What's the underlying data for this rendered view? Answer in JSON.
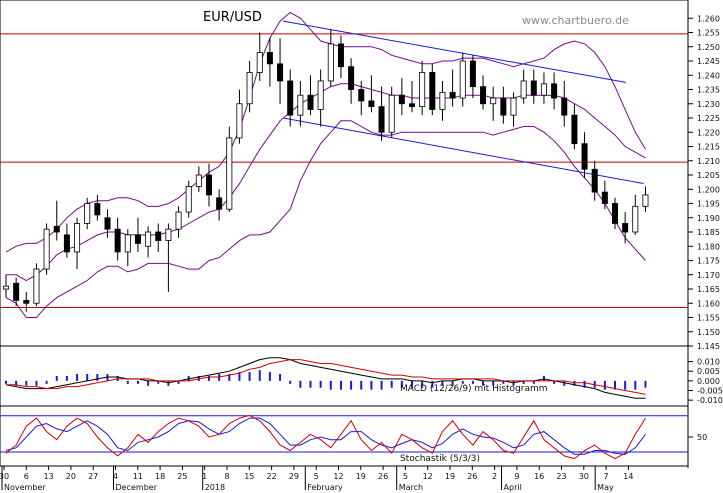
{
  "chart_data": {
    "type": "candlestick",
    "title": "EUR/USD",
    "source": "www.chartbuero.de",
    "price_axis": {
      "ylim": [
        1.145,
        1.265
      ],
      "ticks": [
        "1.260",
        "1.255",
        "1.250",
        "1.245",
        "1.240",
        "1.235",
        "1.230",
        "1.225",
        "1.220",
        "1.215",
        "1.210",
        "1.205",
        "1.200",
        "1.195",
        "1.190",
        "1.185",
        "1.180",
        "1.175",
        "1.170",
        "1.165",
        "1.160",
        "1.155",
        "1.150",
        "1.145"
      ]
    },
    "date_ticks": [
      "30",
      "6",
      "13",
      "20",
      "27",
      "4",
      "11",
      "18",
      "25",
      "1",
      "8",
      "15",
      "22",
      "29",
      "5",
      "12",
      "19",
      "26",
      "5",
      "12",
      "19",
      "26",
      "2",
      "9",
      "16",
      "23",
      "30",
      "7",
      "14"
    ],
    "month_labels": [
      "November",
      "December",
      "2018",
      "February",
      "March",
      "April",
      "May"
    ],
    "horizontal_levels": [
      1.2545,
      1.2095,
      1.1585
    ],
    "trend_channel": {
      "upper": {
        "from": [
          13,
          1.259
        ],
        "to": [
          35,
          1.2375
        ]
      },
      "lower": {
        "from": [
          13,
          1.225
        ],
        "to": [
          36,
          1.202
        ]
      }
    },
    "candles": [
      [
        1.165,
        1.17,
        1.162,
        1.166
      ],
      [
        1.167,
        1.169,
        1.159,
        1.161
      ],
      [
        1.161,
        1.164,
        1.157,
        1.16
      ],
      [
        1.16,
        1.174,
        1.159,
        1.172
      ],
      [
        1.172,
        1.188,
        1.17,
        1.186
      ],
      [
        1.187,
        1.196,
        1.182,
        1.185
      ],
      [
        1.184,
        1.188,
        1.176,
        1.178
      ],
      [
        1.178,
        1.19,
        1.172,
        1.188
      ],
      [
        1.188,
        1.197,
        1.186,
        1.195
      ],
      [
        1.195,
        1.198,
        1.189,
        1.191
      ],
      [
        1.19,
        1.193,
        1.183,
        1.186
      ],
      [
        1.186,
        1.19,
        1.175,
        1.178
      ],
      [
        1.178,
        1.186,
        1.173,
        1.184
      ],
      [
        1.184,
        1.19,
        1.178,
        1.181
      ],
      [
        1.18,
        1.187,
        1.176,
        1.185
      ],
      [
        1.185,
        1.188,
        1.178,
        1.182
      ],
      [
        1.182,
        1.188,
        1.164,
        1.186
      ],
      [
        1.186,
        1.194,
        1.183,
        1.192
      ],
      [
        1.192,
        1.203,
        1.19,
        1.201
      ],
      [
        1.201,
        1.208,
        1.199,
        1.205
      ],
      [
        1.205,
        1.209,
        1.194,
        1.198
      ],
      [
        1.197,
        1.2,
        1.189,
        1.193
      ],
      [
        1.193,
        1.222,
        1.192,
        1.218
      ],
      [
        1.218,
        1.235,
        1.216,
        1.23
      ],
      [
        1.23,
        1.245,
        1.227,
        1.241
      ],
      [
        1.241,
        1.255,
        1.238,
        1.248
      ],
      [
        1.248,
        1.253,
        1.236,
        1.244
      ],
      [
        1.244,
        1.253,
        1.23,
        1.238
      ],
      [
        1.238,
        1.242,
        1.222,
        1.226
      ],
      [
        1.226,
        1.238,
        1.222,
        1.233
      ],
      [
        1.233,
        1.24,
        1.226,
        1.228
      ],
      [
        1.228,
        1.242,
        1.222,
        1.238
      ],
      [
        1.238,
        1.256,
        1.236,
        1.251
      ],
      [
        1.251,
        1.254,
        1.239,
        1.243
      ],
      [
        1.243,
        1.246,
        1.23,
        1.235
      ],
      [
        1.235,
        1.238,
        1.226,
        1.231
      ],
      [
        1.231,
        1.24,
        1.227,
        1.229
      ],
      [
        1.229,
        1.236,
        1.217,
        1.22
      ],
      [
        1.22,
        1.236,
        1.218,
        1.233
      ],
      [
        1.233,
        1.239,
        1.226,
        1.23
      ],
      [
        1.23,
        1.238,
        1.227,
        1.229
      ],
      [
        1.229,
        1.245,
        1.226,
        1.241
      ],
      [
        1.241,
        1.244,
        1.226,
        1.228
      ],
      [
        1.228,
        1.238,
        1.224,
        1.234
      ],
      [
        1.234,
        1.242,
        1.229,
        1.232
      ],
      [
        1.232,
        1.248,
        1.229,
        1.245
      ],
      [
        1.245,
        1.247,
        1.232,
        1.236
      ],
      [
        1.236,
        1.24,
        1.228,
        1.23
      ],
      [
        1.23,
        1.236,
        1.224,
        1.232
      ],
      [
        1.232,
        1.236,
        1.223,
        1.226
      ],
      [
        1.226,
        1.234,
        1.222,
        1.232
      ],
      [
        1.232,
        1.242,
        1.23,
        1.238
      ],
      [
        1.238,
        1.242,
        1.23,
        1.233
      ],
      [
        1.233,
        1.241,
        1.23,
        1.237
      ],
      [
        1.237,
        1.241,
        1.228,
        1.232
      ],
      [
        1.232,
        1.238,
        1.222,
        1.226
      ],
      [
        1.226,
        1.23,
        1.214,
        1.216
      ],
      [
        1.216,
        1.22,
        1.204,
        1.207
      ],
      [
        1.207,
        1.21,
        1.196,
        1.199
      ],
      [
        1.199,
        1.203,
        1.193,
        1.195
      ],
      [
        1.195,
        1.197,
        1.186,
        1.188
      ],
      [
        1.188,
        1.192,
        1.181,
        1.185
      ],
      [
        1.185,
        1.198,
        1.184,
        1.194
      ],
      [
        1.194,
        1.201,
        1.192,
        1.198
      ]
    ],
    "bollinger": {
      "mid": [
        1.17,
        1.17,
        1.168,
        1.17,
        1.173,
        1.177,
        1.179,
        1.18,
        1.182,
        1.184,
        1.185,
        1.185,
        1.184,
        1.184,
        1.184,
        1.184,
        1.185,
        1.186,
        1.188,
        1.19,
        1.192,
        1.193,
        1.197,
        1.202,
        1.208,
        1.214,
        1.219,
        1.224,
        1.227,
        1.23,
        1.232,
        1.234,
        1.236,
        1.237,
        1.237,
        1.236,
        1.235,
        1.234,
        1.233,
        1.233,
        1.232,
        1.232,
        1.232,
        1.232,
        1.232,
        1.233,
        1.233,
        1.233,
        1.232,
        1.232,
        1.232,
        1.233,
        1.233,
        1.233,
        1.233,
        1.232,
        1.23,
        1.228,
        1.225,
        1.222,
        1.219,
        1.215,
        1.213,
        1.211
      ],
      "upper": [
        1.178,
        1.18,
        1.181,
        1.181,
        1.183,
        1.186,
        1.19,
        1.193,
        1.195,
        1.196,
        1.196,
        1.197,
        1.197,
        1.196,
        1.194,
        1.194,
        1.195,
        1.197,
        1.2,
        1.203,
        1.206,
        1.208,
        1.213,
        1.221,
        1.232,
        1.244,
        1.253,
        1.259,
        1.262,
        1.26,
        1.256,
        1.252,
        1.251,
        1.25,
        1.25,
        1.25,
        1.25,
        1.249,
        1.247,
        1.246,
        1.245,
        1.244,
        1.244,
        1.245,
        1.245,
        1.246,
        1.246,
        1.246,
        1.245,
        1.244,
        1.243,
        1.244,
        1.245,
        1.246,
        1.249,
        1.251,
        1.252,
        1.251,
        1.248,
        1.243,
        1.236,
        1.228,
        1.22,
        1.214
      ],
      "lower": [
        1.162,
        1.16,
        1.155,
        1.155,
        1.159,
        1.162,
        1.164,
        1.166,
        1.168,
        1.171,
        1.173,
        1.173,
        1.171,
        1.172,
        1.174,
        1.174,
        1.174,
        1.173,
        1.172,
        1.172,
        1.175,
        1.176,
        1.179,
        1.182,
        1.184,
        1.184,
        1.185,
        1.189,
        1.193,
        1.203,
        1.21,
        1.216,
        1.22,
        1.224,
        1.224,
        1.222,
        1.22,
        1.219,
        1.219,
        1.22,
        1.22,
        1.22,
        1.22,
        1.22,
        1.22,
        1.22,
        1.22,
        1.22,
        1.219,
        1.22,
        1.221,
        1.222,
        1.222,
        1.22,
        1.217,
        1.213,
        1.208,
        1.204,
        1.2,
        1.195,
        1.189,
        1.183,
        1.179,
        1.175
      ]
    },
    "macd": {
      "label": "MACD (12/26/9) mit Histogramm",
      "ylim": [
        -0.012,
        0.016
      ],
      "ticks": [
        "0.010",
        "0.005",
        "0.000",
        "-0.005",
        "-0.010"
      ],
      "macd": [
        -0.002,
        -0.003,
        -0.004,
        -0.004,
        -0.004,
        -0.003,
        -0.002,
        -0.001,
        0.0,
        0.001,
        0.002,
        0.002,
        0.001,
        0.001,
        0.0,
        0.0,
        -0.001,
        0.0,
        0.001,
        0.002,
        0.003,
        0.004,
        0.005,
        0.007,
        0.009,
        0.011,
        0.012,
        0.012,
        0.011,
        0.009,
        0.008,
        0.007,
        0.006,
        0.005,
        0.004,
        0.003,
        0.002,
        0.001,
        0.001,
        0.001,
        0.0,
        0.0,
        -0.001,
        0.0,
        0.0,
        0.001,
        0.001,
        0.0,
        0.0,
        0.0,
        -0.001,
        0.0,
        0.0,
        0.001,
        0.0,
        -0.001,
        -0.002,
        -0.003,
        -0.004,
        -0.006,
        -0.007,
        -0.008,
        -0.009,
        -0.009
      ],
      "signal": [
        -0.002,
        -0.002,
        -0.003,
        -0.003,
        -0.004,
        -0.004,
        -0.003,
        -0.003,
        -0.002,
        -0.001,
        0.0,
        0.001,
        0.001,
        0.001,
        0.001,
        0.0,
        0.0,
        0.0,
        0.0,
        0.001,
        0.002,
        0.002,
        0.003,
        0.004,
        0.006,
        0.007,
        0.009,
        0.01,
        0.011,
        0.011,
        0.01,
        0.009,
        0.009,
        0.008,
        0.007,
        0.006,
        0.005,
        0.004,
        0.003,
        0.003,
        0.002,
        0.002,
        0.001,
        0.001,
        0.001,
        0.001,
        0.001,
        0.001,
        0.001,
        0.0,
        0.0,
        0.0,
        0.0,
        0.0,
        0.0,
        0.0,
        -0.001,
        -0.001,
        -0.002,
        -0.003,
        -0.004,
        -0.005,
        -0.006,
        -0.007
      ]
    },
    "stochastic": {
      "label": "Stochastik (5/3/3)",
      "ylim": [
        0,
        100
      ],
      "ticks": [
        "50"
      ],
      "levels": [
        80,
        20
      ],
      "k": [
        20,
        35,
        70,
        85,
        60,
        45,
        70,
        85,
        75,
        50,
        30,
        15,
        30,
        55,
        40,
        60,
        75,
        85,
        80,
        70,
        50,
        55,
        75,
        85,
        90,
        80,
        60,
        35,
        25,
        40,
        55,
        45,
        30,
        55,
        80,
        45,
        25,
        40,
        20,
        55,
        45,
        30,
        20,
        60,
        80,
        55,
        35,
        60,
        45,
        25,
        20,
        50,
        80,
        45,
        30,
        15,
        10,
        25,
        35,
        20,
        10,
        20,
        55,
        85
      ],
      "d": [
        25,
        30,
        50,
        70,
        75,
        65,
        60,
        70,
        80,
        70,
        55,
        30,
        25,
        40,
        45,
        50,
        60,
        75,
        80,
        78,
        65,
        55,
        60,
        75,
        85,
        85,
        75,
        55,
        35,
        35,
        45,
        50,
        45,
        45,
        60,
        60,
        45,
        35,
        30,
        38,
        45,
        40,
        30,
        38,
        55,
        65,
        55,
        50,
        48,
        40,
        30,
        35,
        55,
        60,
        45,
        30,
        18,
        18,
        25,
        25,
        20,
        18,
        30,
        55
      ]
    }
  }
}
